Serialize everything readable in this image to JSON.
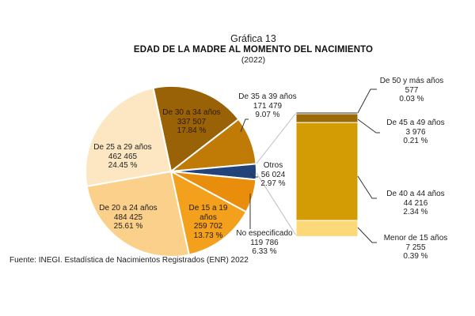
{
  "header": {
    "graphic_number": "Gráfica 13",
    "title": "EDAD DE LA MADRE AL MOMENTO DEL NACIMIENTO",
    "year": "(2022)"
  },
  "source": "Fuente: INEGI. Estadística de Nacimientos Registrados (ENR) 2022",
  "colors": {
    "de_30_a_34": "#9a6206",
    "de_35_a_39": "#c07a06",
    "otros": "#22427a",
    "no_especificado": "#e98e0c",
    "de_15_a_19": "#f3a11c",
    "de_20_a_24": "#fbd08a",
    "de_25_a_29": "#fde7c2",
    "de_50_y_mas": "#3d3324",
    "de_45_a_49": "#9a6a06",
    "de_40_a_44": "#d39c04",
    "menor_de_15": "#fbd878"
  },
  "labels": {
    "de_30_a_34": {
      "name": "De 30 a 34 años",
      "value": "337 507",
      "pct": "17.84 %"
    },
    "de_35_a_39": {
      "name": "De 35 a 39 años",
      "value": "171 479",
      "pct": "9.07 %"
    },
    "otros": {
      "name": "Otros",
      "value": "56 024",
      "pct": "2.97 %"
    },
    "no_especificado": {
      "name": "No especificado",
      "value": "119 786",
      "pct": "6.33 %"
    },
    "de_15_a_19": {
      "name1": "De 15 a 19",
      "name2": "años",
      "value": "259 702",
      "pct": "13.73 %"
    },
    "de_20_a_24": {
      "name": "De 20 a 24 años",
      "value": "484 425",
      "pct": "25.61 %"
    },
    "de_25_a_29": {
      "name": "De 25 a 29 años",
      "value": "462 465",
      "pct": "24.45 %"
    },
    "de_50_y_mas": {
      "name": "De 50 y más años",
      "value": "577",
      "pct": "0.03 %"
    },
    "de_45_a_49": {
      "name": "De 45 a 49 años",
      "value": "3 976",
      "pct": "0.21 %"
    },
    "de_40_a_44": {
      "name": "De 40 a 44 años",
      "value": "44 216",
      "pct": "2.34 %"
    },
    "menor_de_15": {
      "name": "Menor de 15 años",
      "value": "7 255",
      "pct": "0.39 %"
    }
  },
  "chart_data": {
    "type": "pie",
    "title": "Gráfica 13 — Edad de la madre al momento del nacimiento (2022)",
    "subtitle": "(2022)",
    "pie": {
      "categories": [
        "De 30 a 34 años",
        "De 35 a 39 años",
        "Otros",
        "No especificado",
        "De 15 a 19 años",
        "De 20 a 24 años",
        "De 25 a 29 años"
      ],
      "values": [
        337507,
        171479,
        56024,
        119786,
        259702,
        484425,
        462465
      ],
      "percentages": [
        17.84,
        9.07,
        2.97,
        6.33,
        13.73,
        25.61,
        24.45
      ]
    },
    "breakdown_bar": {
      "type": "stacked_bar",
      "parent": "Otros",
      "categories": [
        "De 50 y más años",
        "De 45 a 49 años",
        "De 40 a 44 años",
        "Menor de 15 años"
      ],
      "values": [
        577,
        3976,
        44216,
        7255
      ],
      "percentages": [
        0.03,
        0.21,
        2.34,
        0.39
      ]
    },
    "legend": "none (direct labels)",
    "source": "Fuente: INEGI. Estadística de Nacimientos Registrados (ENR) 2022"
  }
}
